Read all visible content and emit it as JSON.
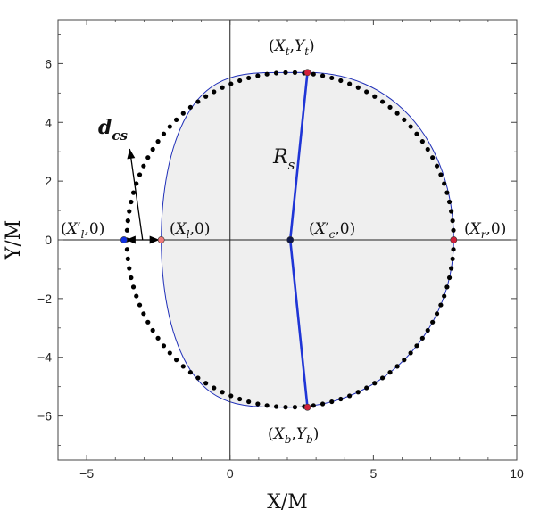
{
  "chart_data": {
    "type": "scatter",
    "title": "",
    "xlabel": "X/M",
    "ylabel": "Y/M",
    "xlim": [
      -6,
      10
    ],
    "ylim": [
      -7.5,
      7.5
    ],
    "xticks": [
      -5,
      0,
      5,
      10
    ],
    "yticks": [
      -6,
      -4,
      -2,
      0,
      2,
      4,
      6
    ],
    "xtick_labels": [
      "−5",
      "0",
      "5",
      "10"
    ],
    "ytick_labels": [
      "−6",
      "−4",
      "−2",
      "0",
      "2",
      "4",
      "6"
    ],
    "grid": false,
    "legend": "none",
    "colors": {
      "shadow_fill": "#efefef",
      "shadow_edge": "#1f2fb8",
      "radius_line": "#1f35d6",
      "circle_dots": "#000000",
      "red_point": "#d1203a",
      "blue_point": "#1030e0",
      "pink_point": "#f07a7a",
      "center_point": "#10184a"
    },
    "circle": {
      "xc": 2.1,
      "yc": 0.0,
      "r": 5.7
    },
    "shadow_boundary": {
      "x_left": -2.4,
      "x_right": 7.8,
      "x_top": 2.7,
      "y_top": 5.7,
      "x_bottom": 2.7,
      "y_bottom": -5.7,
      "x_center": 2.1
    },
    "points": [
      {
        "id": "xt",
        "x": 2.7,
        "y": 5.7,
        "color": "red_point"
      },
      {
        "id": "xb",
        "x": 2.7,
        "y": -5.7,
        "color": "red_point"
      },
      {
        "id": "xr",
        "x": 7.8,
        "y": 0.0,
        "color": "red_point"
      },
      {
        "id": "xc",
        "x": 2.1,
        "y": 0.0,
        "color": "center_point"
      },
      {
        "id": "xl",
        "x": -2.4,
        "y": 0.0,
        "color": "pink_point"
      },
      {
        "id": "xlp",
        "x": -3.7,
        "y": 0.0,
        "color": "blue_point"
      }
    ],
    "dcs_arrow": {
      "from": [
        -3.05,
        0.0
      ],
      "to": [
        -3.5,
        3.1
      ]
    },
    "dcs_double_arrow": {
      "from": [
        -3.7,
        0.0
      ],
      "to": [
        -2.4,
        0.0
      ]
    }
  },
  "annotations": {
    "xt": {
      "p1": "(",
      "v1": "X",
      "s1": "t",
      "c": ",",
      "v2": "Y",
      "s2": "t",
      "p2": ")"
    },
    "xb": {
      "p1": "(",
      "v1": "X",
      "s1": "b",
      "c": ",",
      "v2": "Y",
      "s2": "b",
      "p2": ")"
    },
    "xr": {
      "p1": "(",
      "v1": "X",
      "s1": "r",
      "rest": ",0)"
    },
    "xc": {
      "p1": "(",
      "v1": "X",
      "prime": "′",
      "s1": "c",
      "rest": ",0)"
    },
    "xl": {
      "p1": "(",
      "v1": "X",
      "s1": "l",
      "rest": ",0)"
    },
    "xlp": {
      "p1": "(",
      "v1": "X",
      "prime": "′",
      "s1": "l",
      "rest": ",0)"
    },
    "rs": {
      "main": "R",
      "sub": "s"
    },
    "dcs": {
      "main": "d",
      "sub": "cs"
    }
  }
}
